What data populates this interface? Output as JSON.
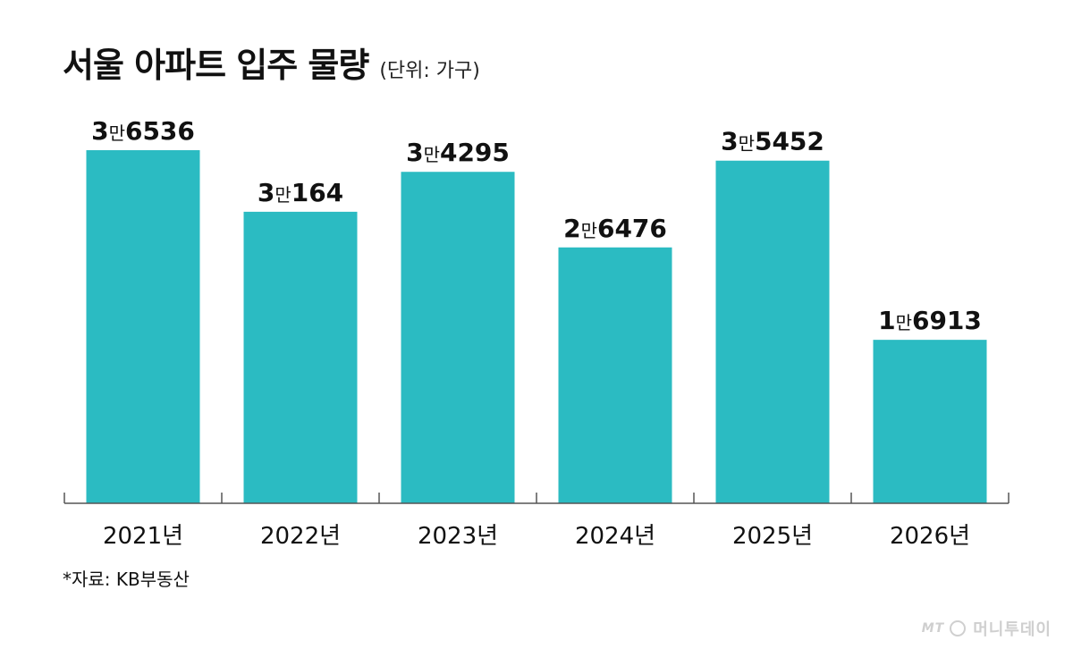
{
  "title": "서울 아파트 입주 물량",
  "unit_note": "(단위: 가구)",
  "source": "*자료: KB부동산",
  "brand": {
    "prefix": "MT",
    "name": "머니투데이"
  },
  "colors": {
    "bar": "#2bbbc2",
    "axis": "#555555",
    "text": "#111111"
  },
  "chart_data": {
    "type": "bar",
    "categories": [
      "2021년",
      "2022년",
      "2023년",
      "2024년",
      "2025년",
      "2026년"
    ],
    "values": [
      36536,
      30164,
      34295,
      26476,
      35452,
      16913
    ],
    "data_labels": [
      {
        "lead": "3",
        "man": "만",
        "rest": "6536"
      },
      {
        "lead": "3",
        "man": "만",
        "rest": "164"
      },
      {
        "lead": "3",
        "man": "만",
        "rest": "4295"
      },
      {
        "lead": "2",
        "man": "만",
        "rest": "6476"
      },
      {
        "lead": "3",
        "man": "만",
        "rest": "5452"
      },
      {
        "lead": "1",
        "man": "만",
        "rest": "6913"
      }
    ],
    "ylim": [
      0,
      36536
    ],
    "grid": false,
    "legend": "none"
  }
}
